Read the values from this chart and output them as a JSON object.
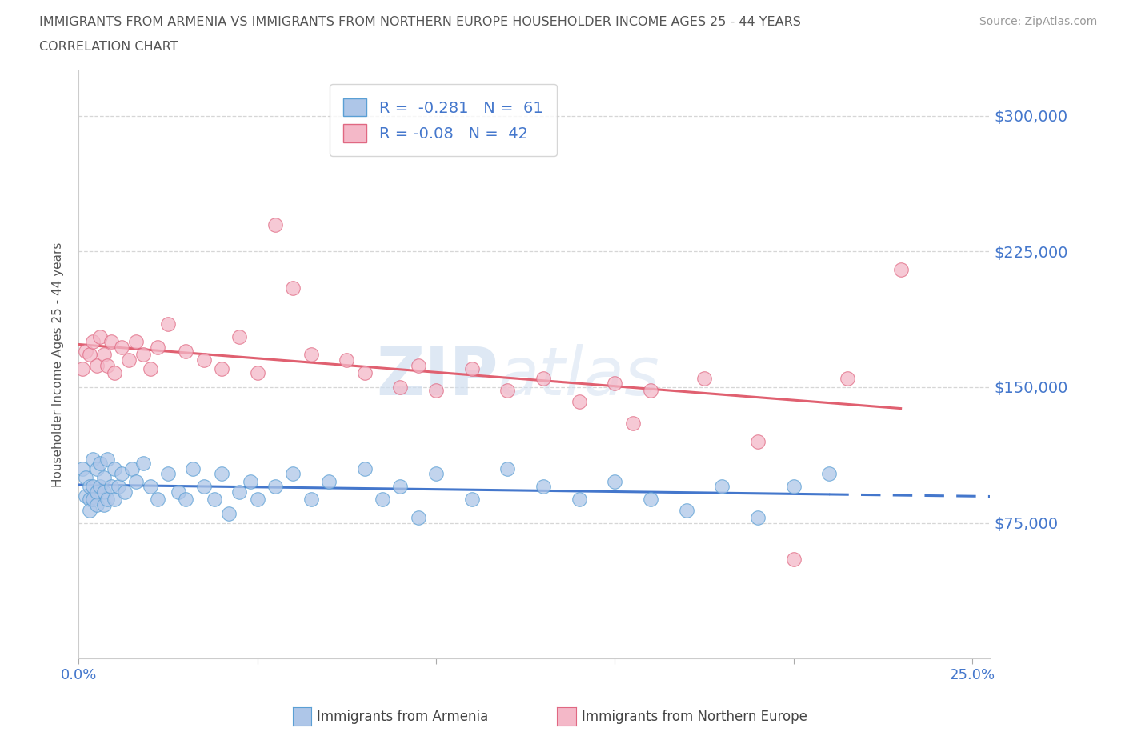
{
  "title": "IMMIGRANTS FROM ARMENIA VS IMMIGRANTS FROM NORTHERN EUROPE HOUSEHOLDER INCOME AGES 25 - 44 YEARS",
  "subtitle": "CORRELATION CHART",
  "source": "Source: ZipAtlas.com",
  "ylabel": "Householder Income Ages 25 - 44 years",
  "xlim": [
    0.0,
    0.255
  ],
  "ylim": [
    0,
    325000
  ],
  "yticks": [
    0,
    75000,
    150000,
    225000,
    300000
  ],
  "xticks": [
    0.0,
    0.05,
    0.1,
    0.15,
    0.2,
    0.25
  ],
  "armenia_color": "#aec6e8",
  "armenia_color_edge": "#5a9fd4",
  "ne_color": "#f4b8c8",
  "ne_color_edge": "#e06882",
  "armenia_R": -0.281,
  "armenia_N": 61,
  "ne_R": -0.08,
  "ne_N": 42,
  "legend_label_1": "Immigrants from Armenia",
  "legend_label_2": "Immigrants from Northern Europe",
  "tick_color": "#4477cc",
  "grid_color": "#cccccc",
  "title_color": "#555555",
  "line_color_armenia": "#4477cc",
  "line_color_ne": "#e06070",
  "armenia_x": [
    0.001,
    0.002,
    0.002,
    0.003,
    0.003,
    0.003,
    0.004,
    0.004,
    0.004,
    0.005,
    0.005,
    0.005,
    0.006,
    0.006,
    0.007,
    0.007,
    0.007,
    0.008,
    0.008,
    0.009,
    0.01,
    0.01,
    0.011,
    0.012,
    0.013,
    0.015,
    0.016,
    0.018,
    0.02,
    0.022,
    0.025,
    0.028,
    0.03,
    0.032,
    0.035,
    0.038,
    0.04,
    0.042,
    0.045,
    0.048,
    0.05,
    0.055,
    0.06,
    0.065,
    0.07,
    0.08,
    0.085,
    0.09,
    0.095,
    0.1,
    0.11,
    0.12,
    0.13,
    0.14,
    0.15,
    0.16,
    0.17,
    0.18,
    0.19,
    0.2,
    0.21
  ],
  "armenia_y": [
    105000,
    100000,
    90000,
    95000,
    88000,
    82000,
    110000,
    95000,
    88000,
    105000,
    92000,
    85000,
    108000,
    95000,
    100000,
    92000,
    85000,
    110000,
    88000,
    95000,
    105000,
    88000,
    95000,
    102000,
    92000,
    105000,
    98000,
    108000,
    95000,
    88000,
    102000,
    92000,
    88000,
    105000,
    95000,
    88000,
    102000,
    80000,
    92000,
    98000,
    88000,
    95000,
    102000,
    88000,
    98000,
    105000,
    88000,
    95000,
    78000,
    102000,
    88000,
    105000,
    95000,
    88000,
    98000,
    88000,
    82000,
    95000,
    78000,
    95000,
    102000
  ],
  "ne_x": [
    0.001,
    0.002,
    0.003,
    0.004,
    0.005,
    0.006,
    0.007,
    0.008,
    0.009,
    0.01,
    0.012,
    0.014,
    0.016,
    0.018,
    0.02,
    0.022,
    0.025,
    0.03,
    0.035,
    0.04,
    0.045,
    0.05,
    0.055,
    0.06,
    0.065,
    0.075,
    0.08,
    0.09,
    0.095,
    0.1,
    0.11,
    0.12,
    0.13,
    0.14,
    0.15,
    0.155,
    0.16,
    0.175,
    0.19,
    0.2,
    0.215,
    0.23
  ],
  "ne_y": [
    160000,
    170000,
    168000,
    175000,
    162000,
    178000,
    168000,
    162000,
    175000,
    158000,
    172000,
    165000,
    175000,
    168000,
    160000,
    172000,
    185000,
    170000,
    165000,
    160000,
    178000,
    158000,
    240000,
    205000,
    168000,
    165000,
    158000,
    150000,
    162000,
    148000,
    160000,
    148000,
    155000,
    142000,
    152000,
    130000,
    148000,
    155000,
    120000,
    55000,
    155000,
    215000
  ]
}
